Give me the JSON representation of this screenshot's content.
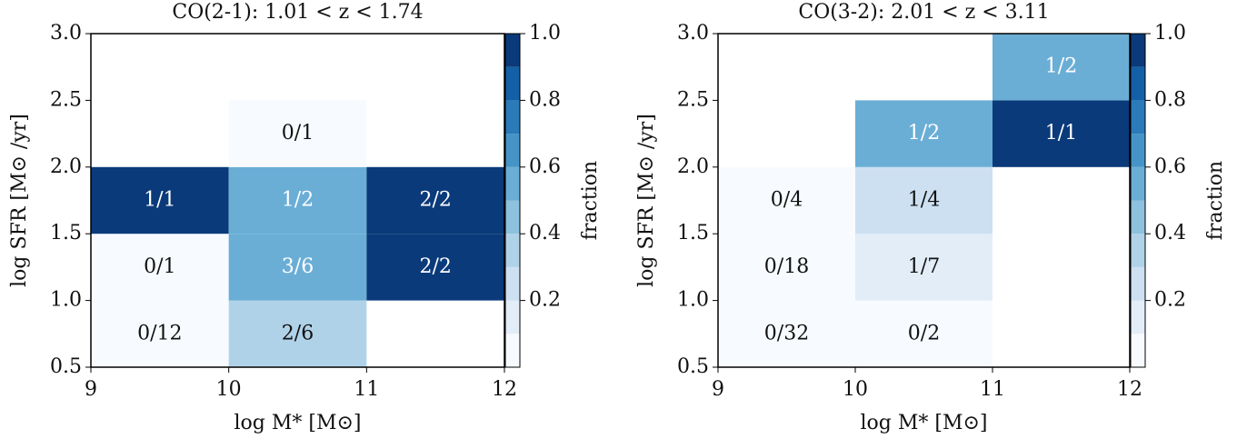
{
  "chart_data": [
    {
      "type": "heatmap",
      "title": "CO(2-1): 1.01 < z < 1.74",
      "xlabel": "log M* [M⊙]",
      "ylabel": "log SFR [M⊙ /yr]",
      "colorbar_label": "fraction",
      "xbins": [
        9,
        10,
        11,
        12
      ],
      "ybins": [
        0.5,
        1.0,
        1.5,
        2.0,
        2.5,
        3.0
      ],
      "values": [
        [
          0,
          0.333,
          null
        ],
        [
          0,
          0.5,
          1
        ],
        [
          1,
          0.5,
          1
        ],
        [
          null,
          0,
          null
        ],
        [
          null,
          null,
          null
        ]
      ],
      "value_labels": [
        [
          "0/12",
          "2/6",
          null
        ],
        [
          "0/1",
          "3/6",
          "2/2"
        ],
        [
          "1/1",
          "1/2",
          "2/2"
        ],
        [
          null,
          "0/1",
          null
        ],
        [
          null,
          null,
          null
        ]
      ],
      "xlim": [
        9,
        12
      ],
      "ylim": [
        0.5,
        3.0
      ],
      "xticks": [
        9,
        10,
        11,
        12
      ],
      "yticks": [
        0.5,
        {
          "value": 1,
          "label": "1.0"
        },
        1.5,
        {
          "value": 2,
          "label": "2.0"
        },
        2.5,
        {
          "value": 3,
          "label": "3.0"
        }
      ],
      "clim": [
        0,
        1
      ],
      "cticks": [
        0.2,
        0.4,
        0.6,
        0.8,
        {
          "value": 1,
          "label": "1.0"
        }
      ],
      "colors": [
        "#f7fbff",
        "#e2edf8",
        "#cde0f1",
        "#b0d2e8",
        "#8dc1dd",
        "#6aaed6",
        "#4694c7",
        "#2b7bba",
        "#1460a8",
        "#0a3a7a"
      ]
    },
    {
      "type": "heatmap",
      "title": "CO(3-2): 2.01 < z < 3.11",
      "xlabel": "log M* [M⊙]",
      "ylabel": "log SFR [M⊙ /yr]",
      "colorbar_label": "fraction",
      "xbins": [
        9,
        10,
        11,
        12
      ],
      "ybins": [
        0.5,
        1.0,
        1.5,
        2.0,
        2.5,
        3.0
      ],
      "values": [
        [
          0,
          0,
          null
        ],
        [
          0,
          0.143,
          null
        ],
        [
          0,
          0.25,
          null
        ],
        [
          null,
          0.5,
          1
        ],
        [
          null,
          null,
          0.5
        ]
      ],
      "value_labels": [
        [
          "0/32",
          "0/2",
          null
        ],
        [
          "0/18",
          "1/7",
          null
        ],
        [
          "0/4",
          "1/4",
          null
        ],
        [
          null,
          "1/2",
          "1/1"
        ],
        [
          null,
          null,
          "1/2"
        ]
      ],
      "xlim": [
        9,
        12
      ],
      "ylim": [
        0.5,
        3.0
      ],
      "xticks": [
        9,
        10,
        11,
        12
      ],
      "yticks": [
        0.5,
        {
          "value": 1,
          "label": "1.0"
        },
        1.5,
        {
          "value": 2,
          "label": "2.0"
        },
        2.5,
        {
          "value": 3,
          "label": "3.0"
        }
      ],
      "clim": [
        0,
        1
      ],
      "cticks": [
        0.2,
        0.4,
        0.6,
        0.8,
        {
          "value": 1,
          "label": "1.0"
        }
      ],
      "colors": [
        "#f7fbff",
        "#e2edf8",
        "#cde0f1",
        "#b0d2e8",
        "#8dc1dd",
        "#6aaed6",
        "#4694c7",
        "#2b7bba",
        "#1460a8",
        "#0a3a7a"
      ]
    }
  ]
}
